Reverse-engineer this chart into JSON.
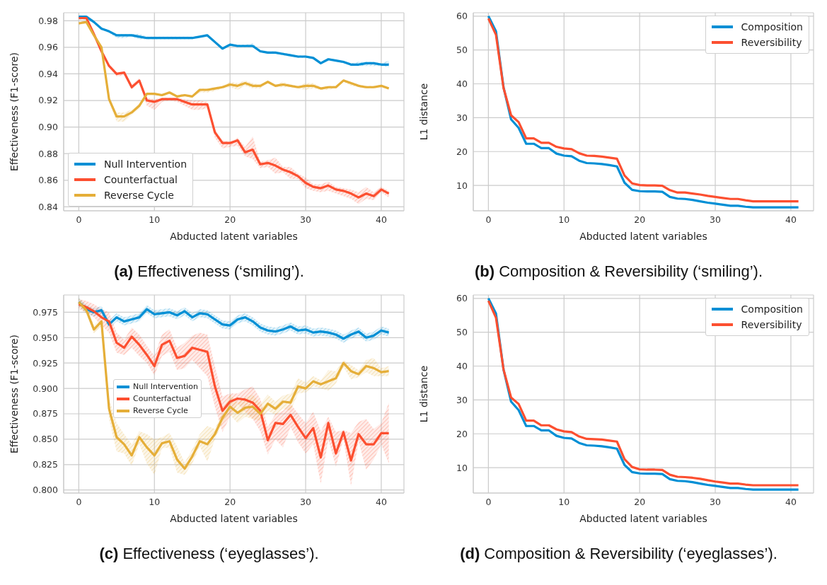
{
  "chart_data": [
    {
      "type": "line",
      "title": "(a) Effectiveness (‘smiling’).",
      "xlabel": "Abducted latent variables",
      "ylabel": "Effectiveness (F1-score)",
      "x": [
        0,
        1,
        2,
        3,
        4,
        5,
        6,
        7,
        8,
        9,
        10,
        11,
        12,
        13,
        14,
        15,
        16,
        17,
        18,
        19,
        20,
        21,
        22,
        23,
        24,
        25,
        26,
        27,
        28,
        29,
        30,
        31,
        32,
        33,
        34,
        35,
        36,
        37,
        38,
        39,
        40,
        41
      ],
      "xlim": [
        -2,
        43
      ],
      "xticks": [
        0,
        10,
        20,
        30,
        40
      ],
      "ylim": [
        0.837,
        0.986
      ],
      "yticks": [
        0.84,
        0.86,
        0.88,
        {
          "value": 0.9,
          "label": "0.90"
        },
        0.92,
        0.94,
        0.96,
        0.98
      ],
      "grid": true,
      "legend": "bottom left",
      "series": [
        {
          "name": "Null Intervention",
          "color": "#008fd5",
          "values": [
            0.983,
            0.983,
            0.979,
            0.974,
            0.972,
            0.969,
            0.969,
            0.969,
            0.968,
            0.967,
            0.967,
            0.967,
            0.967,
            0.967,
            0.967,
            0.967,
            0.968,
            0.969,
            0.964,
            0.959,
            0.962,
            0.961,
            0.961,
            0.961,
            0.957,
            0.956,
            0.956,
            0.955,
            0.954,
            0.953,
            0.953,
            0.952,
            0.948,
            0.951,
            0.95,
            0.949,
            0.947,
            0.947,
            0.948,
            0.948,
            0.947,
            0.947
          ],
          "lower": [
            0.981,
            0.981,
            0.978,
            0.973,
            0.971,
            0.967,
            0.967,
            0.968,
            0.966,
            0.966,
            0.966,
            0.966,
            0.966,
            0.966,
            0.966,
            0.966,
            0.967,
            0.968,
            0.963,
            0.958,
            0.961,
            0.96,
            0.96,
            0.96,
            0.956,
            0.955,
            0.955,
            0.954,
            0.953,
            0.952,
            0.952,
            0.951,
            0.947,
            0.95,
            0.949,
            0.948,
            0.946,
            0.946,
            0.946,
            0.946,
            0.946,
            0.945
          ],
          "upper": [
            0.984,
            0.984,
            0.98,
            0.975,
            0.973,
            0.97,
            0.97,
            0.97,
            0.97,
            0.968,
            0.968,
            0.968,
            0.968,
            0.968,
            0.968,
            0.968,
            0.969,
            0.97,
            0.965,
            0.96,
            0.963,
            0.962,
            0.962,
            0.963,
            0.958,
            0.957,
            0.957,
            0.956,
            0.955,
            0.954,
            0.954,
            0.953,
            0.949,
            0.952,
            0.951,
            0.95,
            0.948,
            0.949,
            0.949,
            0.949,
            0.948,
            0.95
          ]
        },
        {
          "name": "Counterfactual",
          "color": "#fc4f30",
          "values": [
            0.982,
            0.982,
            0.97,
            0.957,
            0.946,
            0.94,
            0.941,
            0.93,
            0.935,
            0.92,
            0.919,
            0.921,
            0.921,
            0.921,
            0.919,
            0.917,
            0.917,
            0.917,
            0.896,
            0.888,
            0.888,
            0.89,
            0.881,
            0.883,
            0.872,
            0.873,
            0.871,
            0.868,
            0.866,
            0.863,
            0.858,
            0.855,
            0.854,
            0.856,
            0.853,
            0.852,
            0.85,
            0.847,
            0.85,
            0.848,
            0.853,
            0.85
          ],
          "lower": [
            0.981,
            0.981,
            0.969,
            0.955,
            0.945,
            0.938,
            0.939,
            0.928,
            0.933,
            0.916,
            0.913,
            0.919,
            0.92,
            0.919,
            0.916,
            0.913,
            0.913,
            0.914,
            0.892,
            0.884,
            0.885,
            0.886,
            0.878,
            0.876,
            0.869,
            0.87,
            0.865,
            0.866,
            0.861,
            0.861,
            0.854,
            0.852,
            0.851,
            0.852,
            0.85,
            0.848,
            0.846,
            0.842,
            0.846,
            0.845,
            0.851,
            0.847
          ],
          "upper": [
            0.983,
            0.983,
            0.971,
            0.959,
            0.947,
            0.941,
            0.942,
            0.932,
            0.937,
            0.922,
            0.921,
            0.922,
            0.922,
            0.922,
            0.921,
            0.92,
            0.92,
            0.919,
            0.898,
            0.89,
            0.889,
            0.892,
            0.885,
            0.893,
            0.874,
            0.875,
            0.877,
            0.87,
            0.87,
            0.865,
            0.862,
            0.857,
            0.857,
            0.859,
            0.855,
            0.854,
            0.853,
            0.851,
            0.855,
            0.851,
            0.855,
            0.852
          ]
        },
        {
          "name": "Reverse Cycle",
          "color": "#e5ae38",
          "values": [
            0.978,
            0.979,
            0.969,
            0.96,
            0.921,
            0.908,
            0.908,
            0.911,
            0.916,
            0.925,
            0.925,
            0.924,
            0.926,
            0.923,
            0.924,
            0.923,
            0.928,
            0.928,
            0.929,
            0.93,
            0.932,
            0.931,
            0.933,
            0.931,
            0.931,
            0.934,
            0.931,
            0.932,
            0.931,
            0.93,
            0.931,
            0.931,
            0.929,
            0.93,
            0.93,
            0.935,
            0.933,
            0.931,
            0.93,
            0.93,
            0.931,
            0.929
          ],
          "lower": [
            0.977,
            0.978,
            0.968,
            0.958,
            0.919,
            0.904,
            0.904,
            0.909,
            0.914,
            0.924,
            0.924,
            0.923,
            0.925,
            0.922,
            0.923,
            0.922,
            0.926,
            0.926,
            0.927,
            0.929,
            0.93,
            0.928,
            0.931,
            0.929,
            0.929,
            0.933,
            0.93,
            0.93,
            0.93,
            0.929,
            0.928,
            0.929,
            0.928,
            0.928,
            0.929,
            0.934,
            0.931,
            0.93,
            0.929,
            0.929,
            0.93,
            0.928
          ],
          "upper": [
            0.979,
            0.98,
            0.97,
            0.961,
            0.922,
            0.911,
            0.911,
            0.913,
            0.918,
            0.926,
            0.926,
            0.925,
            0.927,
            0.924,
            0.925,
            0.924,
            0.929,
            0.929,
            0.93,
            0.931,
            0.934,
            0.933,
            0.935,
            0.933,
            0.932,
            0.935,
            0.932,
            0.934,
            0.932,
            0.931,
            0.933,
            0.933,
            0.93,
            0.931,
            0.931,
            0.936,
            0.934,
            0.932,
            0.931,
            0.931,
            0.932,
            0.93
          ]
        }
      ]
    },
    {
      "type": "line",
      "title": "(b) Composition & Reversibility (‘smiling’).",
      "xlabel": "Abducted latent variables",
      "ylabel": "L1 distance",
      "x": [
        0,
        1,
        2,
        3,
        4,
        5,
        6,
        7,
        8,
        9,
        10,
        11,
        12,
        13,
        14,
        15,
        16,
        17,
        18,
        19,
        20,
        21,
        22,
        23,
        24,
        25,
        26,
        27,
        28,
        29,
        30,
        31,
        32,
        33,
        34,
        35,
        36,
        37,
        38,
        39,
        40,
        41
      ],
      "xlim": [
        -2,
        43
      ],
      "xticks": [
        0,
        10,
        20,
        30,
        40
      ],
      "ylim": [
        2.5,
        61
      ],
      "yticks": [
        10,
        20,
        30,
        40,
        50,
        60
      ],
      "grid": true,
      "legend": "top right",
      "series": [
        {
          "name": "Composition",
          "color": "#008fd5",
          "values": [
            60,
            55.5,
            39,
            29.5,
            27,
            22.3,
            22.3,
            21,
            21,
            19.4,
            18.8,
            18.6,
            17.3,
            16.6,
            16.5,
            16.3,
            16,
            15.6,
            10.8,
            8.7,
            8.3,
            8.2,
            8.2,
            8.1,
            6.6,
            6.1,
            6,
            5.7,
            5.3,
            4.9,
            4.6,
            4.3,
            4,
            4,
            3.7,
            3.5,
            3.5,
            3.5,
            3.5,
            3.5,
            3.5,
            3.5
          ]
        },
        {
          "name": "Reversibility",
          "color": "#fc4f30",
          "values": [
            59.3,
            54.5,
            38.8,
            30.7,
            28.7,
            23.9,
            23.9,
            22.6,
            22.6,
            21.4,
            20.9,
            20.7,
            19.5,
            18.8,
            18.7,
            18.5,
            18.2,
            17.9,
            12.9,
            10.6,
            10.1,
            10,
            10,
            9.9,
            8.6,
            7.9,
            7.9,
            7.6,
            7.3,
            6.9,
            6.6,
            6.3,
            6,
            6,
            5.6,
            5.3,
            5.3,
            5.3,
            5.3,
            5.3,
            5.3,
            5.3
          ]
        }
      ]
    },
    {
      "type": "line",
      "title": "(c) Effectiveness (‘eyeglasses’).",
      "xlabel": "Abducted latent variables",
      "ylabel": "Effectiveness (F1-score)",
      "x": [
        0,
        1,
        2,
        3,
        4,
        5,
        6,
        7,
        8,
        9,
        10,
        11,
        12,
        13,
        14,
        15,
        16,
        17,
        18,
        19,
        20,
        21,
        22,
        23,
        24,
        25,
        26,
        27,
        28,
        29,
        30,
        31,
        32,
        33,
        34,
        35,
        36,
        37,
        38,
        39,
        40,
        41
      ],
      "xlim": [
        -2,
        43
      ],
      "xticks": [
        0,
        10,
        20,
        30,
        40
      ],
      "ylim": [
        0.797,
        0.992
      ],
      "yticks": [
        {
          "value": 0.8,
          "label": "0.800"
        },
        0.825,
        {
          "value": 0.85,
          "label": "0.850"
        },
        0.875,
        {
          "value": 0.9,
          "label": "0.900"
        },
        0.925,
        {
          "value": 0.95,
          "label": "0.950"
        },
        0.975
      ],
      "grid": true,
      "legend": "center left",
      "series": [
        {
          "name": "Null Intervention",
          "color": "#008fd5",
          "values": [
            0.985,
            0.978,
            0.975,
            0.977,
            0.963,
            0.97,
            0.966,
            0.968,
            0.97,
            0.978,
            0.973,
            0.974,
            0.975,
            0.972,
            0.976,
            0.97,
            0.974,
            0.973,
            0.968,
            0.963,
            0.962,
            0.968,
            0.97,
            0.966,
            0.96,
            0.957,
            0.956,
            0.958,
            0.961,
            0.957,
            0.958,
            0.955,
            0.956,
            0.955,
            0.953,
            0.949,
            0.953,
            0.956,
            0.95,
            0.952,
            0.957,
            0.955
          ],
          "lower": [
            0.981,
            0.974,
            0.971,
            0.973,
            0.959,
            0.966,
            0.962,
            0.964,
            0.966,
            0.974,
            0.969,
            0.97,
            0.971,
            0.968,
            0.972,
            0.966,
            0.97,
            0.969,
            0.964,
            0.959,
            0.958,
            0.964,
            0.966,
            0.962,
            0.956,
            0.953,
            0.952,
            0.954,
            0.957,
            0.953,
            0.954,
            0.951,
            0.952,
            0.951,
            0.949,
            0.945,
            0.949,
            0.952,
            0.946,
            0.948,
            0.953,
            0.951
          ],
          "upper": [
            0.989,
            0.982,
            0.979,
            0.981,
            0.967,
            0.974,
            0.97,
            0.972,
            0.974,
            0.982,
            0.977,
            0.978,
            0.979,
            0.976,
            0.98,
            0.974,
            0.978,
            0.977,
            0.972,
            0.967,
            0.966,
            0.972,
            0.974,
            0.97,
            0.964,
            0.961,
            0.96,
            0.962,
            0.965,
            0.961,
            0.962,
            0.959,
            0.96,
            0.959,
            0.957,
            0.953,
            0.957,
            0.96,
            0.954,
            0.956,
            0.961,
            0.959
          ]
        },
        {
          "name": "Counterfactual",
          "color": "#fc4f30",
          "values": [
            0.983,
            0.98,
            0.976,
            0.97,
            0.966,
            0.945,
            0.94,
            0.951,
            0.943,
            0.933,
            0.922,
            0.943,
            0.947,
            0.93,
            0.932,
            0.94,
            0.938,
            0.936,
            0.902,
            0.878,
            0.887,
            0.89,
            0.889,
            0.886,
            0.878,
            0.849,
            0.866,
            0.865,
            0.874,
            0.862,
            0.851,
            0.861,
            0.832,
            0.866,
            0.836,
            0.857,
            0.829,
            0.855,
            0.845,
            0.845,
            0.856,
            0.856
          ],
          "lower": [
            0.978,
            0.975,
            0.97,
            0.962,
            0.955,
            0.935,
            0.933,
            0.94,
            0.932,
            0.925,
            0.913,
            0.932,
            0.936,
            0.918,
            0.92,
            0.928,
            0.92,
            0.912,
            0.882,
            0.857,
            0.872,
            0.885,
            0.877,
            0.87,
            0.858,
            0.835,
            0.85,
            0.842,
            0.862,
            0.847,
            0.836,
            0.845,
            0.806,
            0.85,
            0.823,
            0.85,
            0.804,
            0.848,
            0.82,
            0.83,
            0.845,
            0.826
          ],
          "upper": [
            0.988,
            0.986,
            0.983,
            0.978,
            0.975,
            0.955,
            0.948,
            0.96,
            0.953,
            0.942,
            0.932,
            0.953,
            0.958,
            0.94,
            0.945,
            0.952,
            0.955,
            0.953,
            0.922,
            0.892,
            0.895,
            0.895,
            0.899,
            0.902,
            0.89,
            0.862,
            0.875,
            0.878,
            0.885,
            0.875,
            0.866,
            0.877,
            0.858,
            0.872,
            0.857,
            0.859,
            0.856,
            0.867,
            0.87,
            0.86,
            0.866,
            0.886
          ]
        },
        {
          "name": "Reverse Cycle",
          "color": "#e5ae38",
          "values": [
            0.985,
            0.977,
            0.958,
            0.966,
            0.88,
            0.852,
            0.845,
            0.834,
            0.852,
            0.842,
            0.834,
            0.846,
            0.848,
            0.83,
            0.821,
            0.833,
            0.848,
            0.845,
            0.855,
            0.871,
            0.882,
            0.876,
            0.881,
            0.882,
            0.875,
            0.885,
            0.88,
            0.887,
            0.886,
            0.902,
            0.9,
            0.907,
            0.904,
            0.907,
            0.91,
            0.925,
            0.917,
            0.914,
            0.922,
            0.92,
            0.916,
            0.917
          ],
          "lower": [
            0.981,
            0.973,
            0.954,
            0.961,
            0.87,
            0.838,
            0.836,
            0.824,
            0.845,
            0.826,
            0.815,
            0.841,
            0.842,
            0.817,
            0.815,
            0.826,
            0.843,
            0.828,
            0.85,
            0.866,
            0.874,
            0.866,
            0.872,
            0.87,
            0.868,
            0.878,
            0.874,
            0.88,
            0.878,
            0.895,
            0.896,
            0.902,
            0.9,
            0.898,
            0.905,
            0.921,
            0.909,
            0.911,
            0.916,
            0.912,
            0.912,
            0.912
          ],
          "upper": [
            0.989,
            0.981,
            0.962,
            0.97,
            0.89,
            0.866,
            0.855,
            0.845,
            0.858,
            0.855,
            0.85,
            0.852,
            0.856,
            0.843,
            0.827,
            0.84,
            0.855,
            0.863,
            0.86,
            0.877,
            0.894,
            0.886,
            0.891,
            0.894,
            0.885,
            0.894,
            0.887,
            0.893,
            0.895,
            0.91,
            0.906,
            0.912,
            0.908,
            0.918,
            0.917,
            0.928,
            0.923,
            0.918,
            0.928,
            0.93,
            0.92,
            0.922
          ]
        }
      ]
    },
    {
      "type": "line",
      "title": "(d) Composition & Reversibility (‘eyeglasses’).",
      "xlabel": "Abducted latent variables",
      "ylabel": "L1 distance",
      "x": [
        0,
        1,
        2,
        3,
        4,
        5,
        6,
        7,
        8,
        9,
        10,
        11,
        12,
        13,
        14,
        15,
        16,
        17,
        18,
        19,
        20,
        21,
        22,
        23,
        24,
        25,
        26,
        27,
        28,
        29,
        30,
        31,
        32,
        33,
        34,
        35,
        36,
        37,
        38,
        39,
        40,
        41
      ],
      "xlim": [
        -2,
        43
      ],
      "xticks": [
        0,
        10,
        20,
        30,
        40
      ],
      "ylim": [
        2.5,
        61
      ],
      "yticks": [
        10,
        20,
        30,
        40,
        50,
        60
      ],
      "grid": true,
      "legend": "top right",
      "series": [
        {
          "name": "Composition",
          "color": "#008fd5",
          "values": [
            60,
            55.5,
            39,
            29.5,
            27,
            22.3,
            22.3,
            21,
            21,
            19.4,
            18.8,
            18.6,
            17.3,
            16.6,
            16.5,
            16.3,
            16,
            15.6,
            10.8,
            8.7,
            8.3,
            8.2,
            8.2,
            8.1,
            6.6,
            6.1,
            6,
            5.7,
            5.3,
            4.9,
            4.6,
            4.3,
            4,
            4,
            3.7,
            3.5,
            3.5,
            3.5,
            3.5,
            3.5,
            3.5,
            3.5
          ]
        },
        {
          "name": "Reversibility",
          "color": "#fc4f30",
          "values": [
            59.3,
            54.3,
            39,
            30.7,
            28.8,
            23.9,
            23.9,
            22.5,
            22.5,
            21.3,
            20.7,
            20.5,
            19.2,
            18.5,
            18.4,
            18.3,
            18,
            17.7,
            12.5,
            10.2,
            9.5,
            9.4,
            9.4,
            9.3,
            7.9,
            7.3,
            7.2,
            7,
            6.7,
            6.3,
            5.9,
            5.6,
            5.3,
            5.3,
            5,
            4.8,
            4.8,
            4.8,
            4.8,
            4.8,
            4.8,
            4.8
          ]
        }
      ]
    }
  ]
}
